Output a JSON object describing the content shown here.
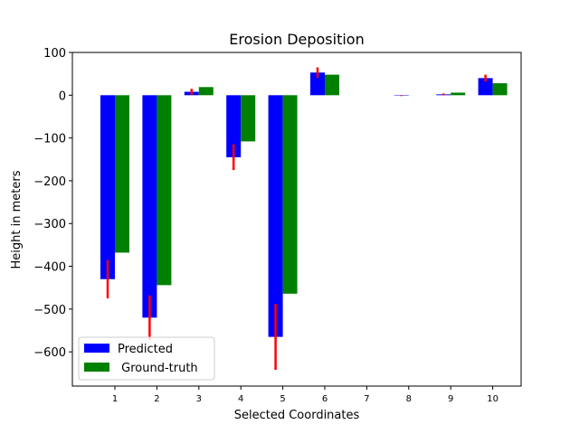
{
  "chart_data": {
    "type": "bar",
    "title": "Erosion Deposition",
    "xlabel": "Selected Coordinates",
    "ylabel": "Height in meters",
    "categories": [
      "1",
      "2",
      "3",
      "4",
      "5",
      "6",
      "7",
      "8",
      "9",
      "10"
    ],
    "ylim": [
      -680,
      100
    ],
    "yticks": [
      100,
      0,
      -100,
      -200,
      -300,
      -400,
      -500,
      -600
    ],
    "ytick_labels": [
      "100",
      "0",
      "−100",
      "−200",
      "−300",
      "−400",
      "−500",
      "−600"
    ],
    "grid": false,
    "legend_position": "lower-left",
    "series": [
      {
        "name": "Predicted",
        "color": "#0000ff",
        "values": [
          -430,
          -520,
          8,
          -145,
          -565,
          53,
          0,
          -1,
          2,
          40
        ],
        "error": [
          45,
          52,
          7,
          30,
          77,
          12,
          0,
          1,
          2,
          8
        ],
        "error_color": "#ff0000"
      },
      {
        "name": " Ground-truth",
        "color": "#008000",
        "values": [
          -368,
          -444,
          19,
          -108,
          -464,
          48,
          0,
          0,
          6,
          28
        ]
      }
    ]
  }
}
